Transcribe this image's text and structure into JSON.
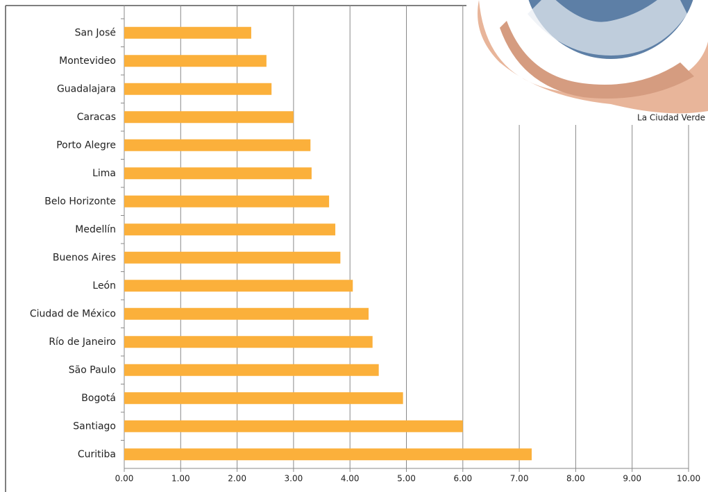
{
  "chart_data": {
    "type": "bar",
    "orientation": "horizontal",
    "annotation": "La Ciudad Verde",
    "categories": [
      "San José",
      "Montevideo",
      "Guadalajara",
      "Caracas",
      "Porto Alegre",
      "Lima",
      "Belo Horizonte",
      "Medellín",
      "Buenos Aires",
      "León",
      "Ciudad de México",
      "Río de Janeiro",
      "São Paulo",
      "Bogotá",
      "Santiago",
      "Curitiba"
    ],
    "values": [
      2.25,
      2.52,
      2.61,
      3.0,
      3.3,
      3.32,
      3.63,
      3.74,
      3.83,
      4.05,
      4.33,
      4.4,
      4.51,
      4.94,
      6.0,
      7.22
    ],
    "color": "#fbb03b",
    "xlim": [
      0,
      10
    ],
    "xticks": [
      {
        "value": 0,
        "label": "0.00"
      },
      {
        "value": 1,
        "label": "1.00"
      },
      {
        "value": 2,
        "label": "2.00"
      },
      {
        "value": 3,
        "label": "3.00"
      },
      {
        "value": 4,
        "label": "4.00"
      },
      {
        "value": 5,
        "label": "5.00"
      },
      {
        "value": 6,
        "label": "6.00"
      },
      {
        "value": 7,
        "label": "7.00"
      },
      {
        "value": 8,
        "label": "8.00"
      },
      {
        "value": 9,
        "label": "9.00"
      },
      {
        "value": 10,
        "label": "10.00"
      }
    ],
    "grid": true
  }
}
